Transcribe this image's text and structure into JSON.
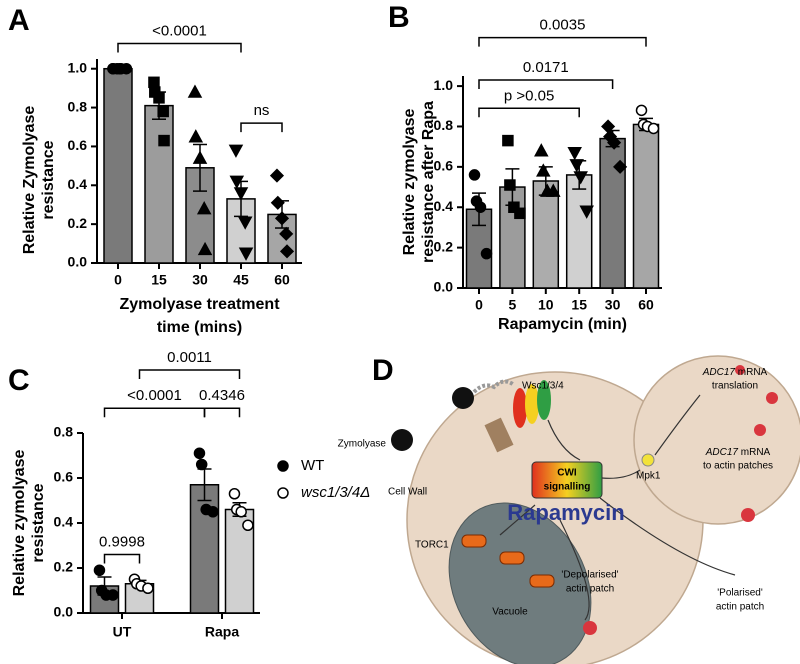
{
  "chart_data": [
    {
      "type": "bar",
      "panel_label": "A",
      "categories": [
        "0",
        "15",
        "30",
        "45",
        "60"
      ],
      "values": [
        1.0,
        0.81,
        0.49,
        0.33,
        0.25
      ],
      "errors": [
        0.0,
        0.07,
        0.12,
        0.09,
        0.07
      ],
      "points": [
        [
          1.0,
          1.0,
          1.0,
          1.0,
          1.0,
          1.0
        ],
        [
          0.93,
          0.88,
          0.85,
          0.78,
          0.63
        ],
        [
          0.88,
          0.65,
          0.54,
          0.28,
          0.07
        ],
        [
          0.58,
          0.42,
          0.36,
          0.21,
          0.05
        ],
        [
          0.45,
          0.31,
          0.23,
          0.15,
          0.06
        ]
      ],
      "markers": [
        "circle",
        "square",
        "triangle",
        "triangle-down",
        "diamond"
      ],
      "colors": [
        "#7a7a7a",
        "#9c9c9c",
        "#8c8c8c",
        "#d0d0d0",
        "#a6a6a6"
      ],
      "ylabel": [
        "Relative Zymolyase",
        "resistance"
      ],
      "xlabel": [
        "Zymolyase treatment",
        "time (mins)"
      ],
      "ylim": [
        0,
        1.05
      ],
      "yticks": [
        {
          "value": 0,
          "label": "0.0"
        },
        0.2,
        0.4,
        0.6,
        0.8,
        {
          "value": 1,
          "label": "1.0"
        }
      ],
      "annotations": [
        {
          "text": "<0.0001",
          "from": 0,
          "to": 3
        },
        {
          "text": "ns",
          "from": 3,
          "to": 4
        }
      ]
    },
    {
      "type": "bar",
      "panel_label": "B",
      "categories": [
        "0",
        "5",
        "10",
        "15",
        "30",
        "60"
      ],
      "values": [
        0.39,
        0.5,
        0.53,
        0.56,
        0.74,
        0.81
      ],
      "errors": [
        0.08,
        0.09,
        0.07,
        0.07,
        0.04,
        0.03
      ],
      "points": [
        [
          0.56,
          0.43,
          0.4,
          0.17
        ],
        [
          0.73,
          0.51,
          0.4,
          0.37
        ],
        [
          0.68,
          0.58,
          0.48,
          0.48
        ],
        [
          0.67,
          0.61,
          0.55,
          0.38
        ],
        [
          0.8,
          0.75,
          0.72,
          0.6
        ],
        [
          0.88,
          0.81,
          0.8,
          0.79
        ]
      ],
      "markers": [
        "circle",
        "square",
        "triangle",
        "triangle-down",
        "diamond",
        "open-circle"
      ],
      "colors": [
        "#7a7a7a",
        "#9c9c9c",
        "#acacac",
        "#d0d0d0",
        "#7a7a7a",
        "#a6a6a6"
      ],
      "ylabel": [
        "Relative zymolyase",
        "resistance after Rapa"
      ],
      "xlabel": [
        "Rapamycin  (min)"
      ],
      "ylim": [
        0,
        1.05
      ],
      "yticks": [
        {
          "value": 0,
          "label": "0.0"
        },
        0.2,
        0.4,
        0.6,
        0.8,
        {
          "value": 1,
          "label": "1.0"
        }
      ],
      "annotations": [
        {
          "text": "p >0.05",
          "from": 0,
          "to": 3
        },
        {
          "text": "0.0171",
          "from": 0,
          "to": 4
        },
        {
          "text": "0.0035",
          "from": 0,
          "to": 5
        }
      ]
    },
    {
      "type": "grouped_bar",
      "panel_label": "C",
      "categories": [
        "UT",
        "Rapa"
      ],
      "series": [
        {
          "name": "WT",
          "color": "#7a7a7a",
          "marker": "circle",
          "values": [
            0.12,
            0.57
          ],
          "errors": [
            0.04,
            0.07
          ],
          "points": [
            [
              0.19,
              0.1,
              0.08,
              0.08
            ],
            [
              0.71,
              0.66,
              0.46,
              0.45
            ]
          ]
        },
        {
          "name": "wsc1/3/4Δ",
          "name_style": "italic",
          "color": "#d0d0d0",
          "marker": "open-circle",
          "values": [
            0.13,
            0.46
          ],
          "errors": [
            0.015,
            0.03
          ],
          "points": [
            [
              0.15,
              0.13,
              0.12,
              0.11
            ],
            [
              0.53,
              0.46,
              0.45,
              0.39
            ]
          ]
        }
      ],
      "ylabel": [
        "Relative zymolyase",
        "resistance"
      ],
      "ylim": [
        0,
        0.8
      ],
      "yticks": [
        {
          "value": 0,
          "label": "0.0"
        },
        0.2,
        0.4,
        0.6,
        0.8
      ],
      "annotations": [
        {
          "text": "0.9998",
          "from": [
            0,
            0
          ],
          "to": [
            0,
            1
          ]
        },
        {
          "text": "<0.0001",
          "from": [
            0,
            0
          ],
          "to": [
            1,
            0
          ]
        },
        {
          "text": "0.4346",
          "from": [
            1,
            0
          ],
          "to": [
            1,
            1
          ]
        },
        {
          "text": "0.0011",
          "from": [
            0,
            1
          ],
          "to": [
            1,
            1
          ]
        }
      ]
    }
  ],
  "diagram": {
    "panel_label": "D",
    "zymolyase": "Zymolyase",
    "cell_wall": "Cell Wall",
    "wsc": "Wsc1/3/4",
    "cwi": [
      "CWI",
      "signalling"
    ],
    "rapamycin": "Rapamycin",
    "mpk1": "Mpk1",
    "torc1": "TORC1",
    "vacuole": "Vacuole",
    "translation": {
      "gene": "ADC17",
      "line1": " mRNA",
      "line2": "translation"
    },
    "to_patches": {
      "gene": "ADC17",
      "line1": " mRNA",
      "line2": "to actin patches"
    },
    "polarised": [
      "'Polarised'",
      "actin patch"
    ],
    "depolarised": [
      "'Depolarised'",
      "actin patch"
    ]
  }
}
